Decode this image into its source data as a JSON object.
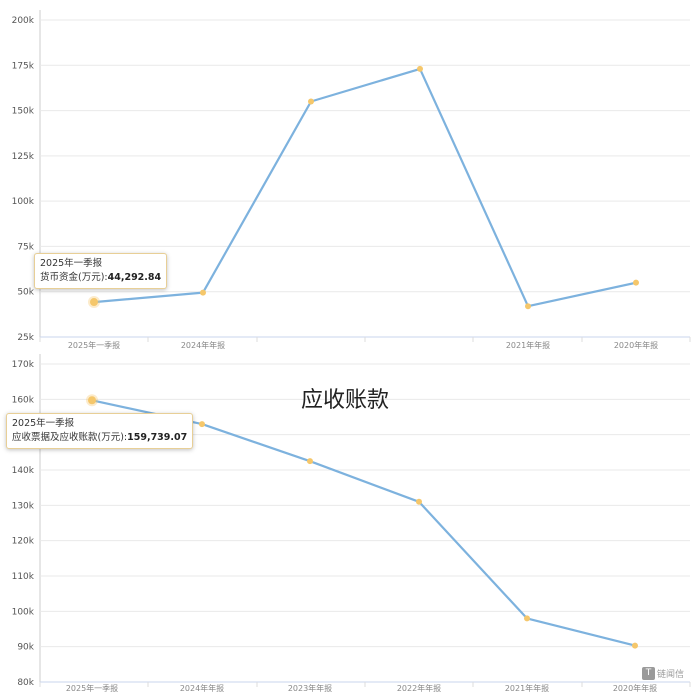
{
  "chart_data": [
    {
      "type": "line",
      "title": "",
      "xlabel": "",
      "ylabel": "",
      "ylim": [
        25000,
        200000
      ],
      "yticks": [
        "25k",
        "50k",
        "75k",
        "100k",
        "125k",
        "150k",
        "175k",
        "200k"
      ],
      "ytick_values": [
        25000,
        50000,
        75000,
        100000,
        125000,
        150000,
        175000,
        200000
      ],
      "categories": [
        "2025年一季报",
        "2024年年报",
        "",
        "",
        "2021年年报",
        "2020年年报"
      ],
      "series": [
        {
          "values": [
            44292.84,
            49500,
            155000,
            173000,
            42000,
            55000
          ]
        }
      ],
      "tooltip": {
        "period": "2025年一季报",
        "label": "货币资金(万元):",
        "value": "44,292.84"
      },
      "grid": true,
      "color": "#7db2de",
      "marker_color": "#f5c76b"
    },
    {
      "type": "line",
      "title": "应收账款",
      "xlabel": "",
      "ylabel": "",
      "ylim": [
        80000,
        170000
      ],
      "yticks": [
        "80k",
        "90k",
        "100k",
        "110k",
        "120k",
        "130k",
        "140k",
        "150k",
        "160k",
        "170k"
      ],
      "ytick_values": [
        80000,
        90000,
        100000,
        110000,
        120000,
        130000,
        140000,
        150000,
        160000,
        170000
      ],
      "categories": [
        "2025年一季报",
        "2024年年报",
        "2023年年报",
        "2022年年报",
        "2021年年报",
        "2020年年报"
      ],
      "series": [
        {
          "values": [
            159739.07,
            153000,
            142500,
            131000,
            98000,
            90300
          ]
        }
      ],
      "tooltip": {
        "period": "2025年一季报",
        "label": "应收票据及应收账款(万元):",
        "value": "159,739.07"
      },
      "grid": true,
      "color": "#7db2de",
      "marker_color": "#f5c76b"
    }
  ],
  "watermark": {
    "text": "链闻信"
  }
}
